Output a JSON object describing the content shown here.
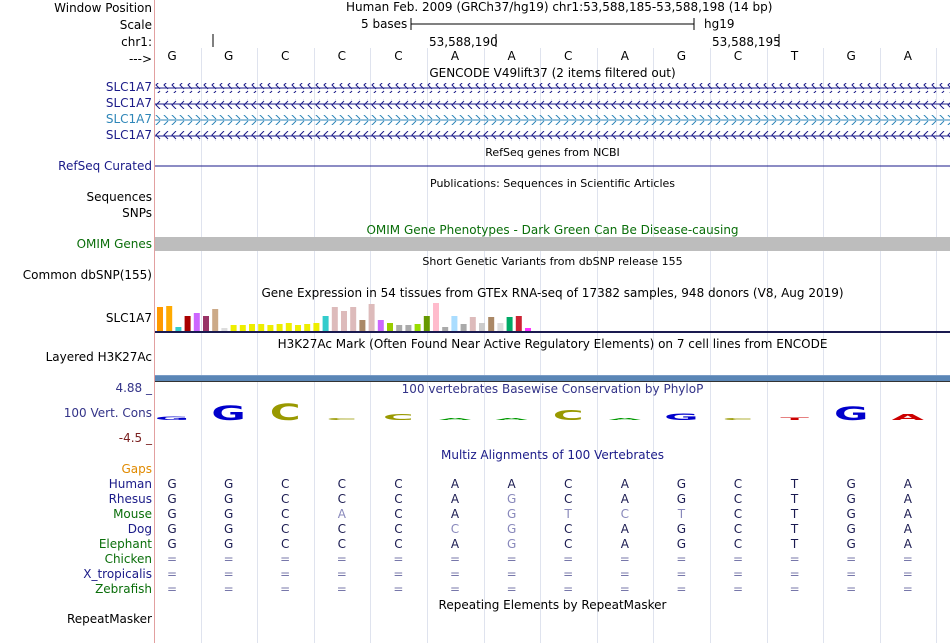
{
  "header": {
    "window_position_label": "Window Position",
    "position_text": "Human Feb. 2009 (GRCh37/hg19)   chr1:53,588,185-53,588,198 (14 bp)",
    "scale_label": "Scale",
    "scale_bases": "5 bases",
    "scale_assembly": "hg19",
    "chrom_label": "chr1:",
    "coord_1": "53,588,190",
    "coord_2": "53,588,195",
    "strand_label": "--->"
  },
  "reference_bases": [
    "G",
    "G",
    "C",
    "C",
    "C",
    "A",
    "A",
    "C",
    "A",
    "G",
    "C",
    "T",
    "G",
    "A"
  ],
  "gencode": {
    "title": "GENCODE V49lift37 (2 items filtered out)",
    "genes": [
      {
        "label": "SLC1A7",
        "color": "#1a1a88"
      },
      {
        "label": "SLC1A7",
        "color": "#1a1a88"
      },
      {
        "label": "SLC1A7",
        "color": "#2e86b8"
      },
      {
        "label": "SLC1A7",
        "color": "#1a1a88"
      }
    ]
  },
  "refseq": {
    "label": "RefSeq Curated",
    "title": "RefSeq genes from NCBI",
    "color": "#1a1a88"
  },
  "publications": {
    "label": "Sequences",
    "title": "Publications: Sequences in Scientific Articles"
  },
  "snps_label": "SNPs",
  "omim": {
    "label": "OMIM Genes",
    "title": "OMIM Gene Phenotypes - Dark Green Can Be Disease-causing",
    "color": "#0a6e0a"
  },
  "dbsnp": {
    "label": "Common dbSNP(155)",
    "title": "Short Genetic Variants from dbSNP release 155"
  },
  "gtex": {
    "label": "SLC1A7",
    "title": "Gene Expression in 54 tissues from GTEx RNA-seq of 17382 samples, 948 donors (V8, Aug 2019)",
    "bar_colors": [
      "#ff9900",
      "#ffaa00",
      "#33cccc",
      "#aa0000",
      "#cc66ff",
      "#993366",
      "#ccaa88",
      "#dddddd",
      "#eeee00",
      "#eeee00",
      "#eeee00",
      "#eeee00",
      "#eeee00",
      "#eeee00",
      "#eeee00",
      "#eeee00",
      "#eeee00",
      "#eeee00",
      "#33cccc",
      "#ddbbbb",
      "#ddbbbb",
      "#ddbbbb",
      "#aa8866",
      "#ddbbbb",
      "#cc66ff",
      "#99cc00",
      "#aaaaaa",
      "#aaaaaa",
      "#99dd00",
      "#669900",
      "#ffbbcc",
      "#aaaaaa",
      "#aaddff",
      "#aaaaaa",
      "#ddbbbb",
      "#cccccc",
      "#aa8866",
      "#dddddd",
      "#00aa66",
      "#cc2233",
      "#ff33ff"
    ],
    "bar_levels": [
      0.85,
      0.9,
      0.15,
      0.55,
      0.65,
      0.55,
      0.8,
      0.1,
      0.2,
      0.2,
      0.25,
      0.25,
      0.2,
      0.25,
      0.3,
      0.2,
      0.25,
      0.3,
      0.55,
      0.85,
      0.7,
      0.85,
      0.4,
      0.95,
      0.4,
      0.3,
      0.2,
      0.2,
      0.25,
      0.55,
      1.0,
      0.15,
      0.55,
      0.25,
      0.5,
      0.3,
      0.5,
      0.3,
      0.5,
      0.55,
      0.12
    ]
  },
  "h3k27ac": {
    "label": "Layered H3K27Ac",
    "title": "H3K27Ac Mark (Often Found Near Active Regulatory Elements) on 7 cell lines from ENCODE"
  },
  "phylop": {
    "label": "100 Vert. Cons",
    "max_label": "4.88 _",
    "min_label": "-4.5 _",
    "title": "100 vertebrates Basewise Conservation by PhyloP",
    "letters": [
      "G",
      "G",
      "C",
      "C",
      "C",
      "A",
      "A",
      "C",
      "A",
      "G",
      "C",
      "T",
      "G",
      "A"
    ],
    "letter_colors": [
      "#0000cc",
      "#0000cc",
      "#999900",
      "#999900",
      "#999900",
      "#009900",
      "#009900",
      "#999900",
      "#009900",
      "#0000cc",
      "#999900",
      "#cc0000",
      "#0000cc",
      "#cc0000"
    ],
    "scores": [
      0.2,
      0.9,
      1.0,
      0.1,
      0.35,
      0.05,
      0.1,
      0.6,
      0.05,
      0.4,
      0.1,
      0.15,
      0.85,
      0.35
    ]
  },
  "multiz": {
    "title": "Multiz Alignments of 100 Vertebrates",
    "gaps_label": "Gaps",
    "species": [
      {
        "name": "Human",
        "color": "#1a1a88",
        "bases": [
          "G",
          "G",
          "C",
          "C",
          "C",
          "A",
          "A",
          "C",
          "A",
          "G",
          "C",
          "T",
          "G",
          "A"
        ]
      },
      {
        "name": "Rhesus",
        "color": "#1a1a88",
        "bases": [
          "G",
          "G",
          "C",
          "C",
          "C",
          "A",
          "G",
          "C",
          "A",
          "G",
          "C",
          "T",
          "G",
          "A"
        ]
      },
      {
        "name": "Mouse",
        "color": "#0a6e0a",
        "bases": [
          "G",
          "G",
          "C",
          "A",
          "C",
          "A",
          "G",
          "T",
          "C",
          "T",
          "C",
          "T",
          "G",
          "A"
        ]
      },
      {
        "name": "Dog",
        "color": "#1a1a88",
        "bases": [
          "G",
          "G",
          "C",
          "C",
          "C",
          "C",
          "G",
          "C",
          "A",
          "G",
          "C",
          "T",
          "G",
          "A"
        ]
      },
      {
        "name": "Elephant",
        "color": "#0a6e0a",
        "bases": [
          "G",
          "G",
          "C",
          "C",
          "C",
          "A",
          "G",
          "C",
          "A",
          "G",
          "C",
          "T",
          "G",
          "A"
        ]
      },
      {
        "name": "Chicken",
        "color": "#0a6e0a",
        "bases": [
          "=",
          "=",
          "=",
          "=",
          "=",
          "=",
          "=",
          "=",
          "=",
          "=",
          "=",
          "=",
          "=",
          "="
        ]
      },
      {
        "name": "X_tropicalis",
        "color": "#1a1a88",
        "bases": [
          "=",
          "=",
          "=",
          "=",
          "=",
          "=",
          "=",
          "=",
          "=",
          "=",
          "=",
          "=",
          "=",
          "="
        ]
      },
      {
        "name": "Zebrafish",
        "color": "#0a6e0a",
        "bases": [
          "=",
          "=",
          "=",
          "=",
          "=",
          "=",
          "=",
          "=",
          "=",
          "=",
          "=",
          "=",
          "=",
          "="
        ]
      }
    ],
    "mismatch_matrix": [
      [
        0,
        0,
        0,
        0,
        0,
        0,
        0,
        0,
        0,
        0,
        0,
        0,
        0,
        0
      ],
      [
        0,
        0,
        0,
        0,
        0,
        0,
        1,
        0,
        0,
        0,
        0,
        0,
        0,
        0
      ],
      [
        0,
        0,
        0,
        1,
        0,
        0,
        1,
        1,
        1,
        1,
        0,
        0,
        0,
        0
      ],
      [
        0,
        0,
        0,
        0,
        0,
        1,
        1,
        0,
        0,
        0,
        0,
        0,
        0,
        0
      ],
      [
        0,
        0,
        0,
        0,
        0,
        0,
        1,
        0,
        0,
        0,
        0,
        0,
        0,
        0
      ],
      [
        0,
        0,
        0,
        0,
        0,
        0,
        0,
        0,
        0,
        0,
        0,
        0,
        0,
        0
      ],
      [
        0,
        0,
        0,
        0,
        0,
        0,
        0,
        0,
        0,
        0,
        0,
        0,
        0,
        0
      ],
      [
        0,
        0,
        0,
        0,
        0,
        0,
        0,
        0,
        0,
        0,
        0,
        0,
        0,
        0
      ]
    ]
  },
  "repeatmasker": {
    "label": "RepeatMasker",
    "title": "Repeating Elements by RepeatMasker"
  }
}
